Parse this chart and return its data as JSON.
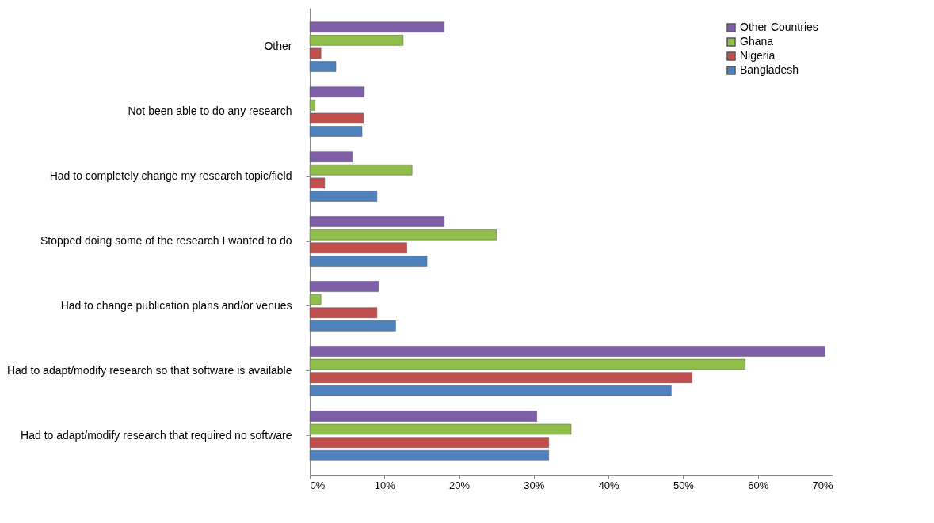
{
  "chart_data": {
    "type": "bar",
    "orientation": "horizontal",
    "categories": [
      "Other",
      "Not been able to do any research",
      "Had to completely change my research topic/field",
      "Stopped doing some of the research I wanted to do",
      "Had to change publication plans and/or venues",
      "Had to adapt/modify research so that software is available",
      "Had to adapt/modify research that required no software"
    ],
    "series": [
      {
        "name": "Bangladesh",
        "color": "#4f81bd",
        "values": [
          3.5,
          7,
          9,
          15.7,
          11.5,
          48.4,
          32
        ]
      },
      {
        "name": "Nigeria",
        "color": "#c0504d",
        "values": [
          1.5,
          7.2,
          2,
          13,
          9,
          51.2,
          32
        ]
      },
      {
        "name": "Ghana",
        "color": "#8fbf4a",
        "values": [
          12.5,
          0.7,
          13.7,
          25,
          1.5,
          58.3,
          35
        ]
      },
      {
        "name": "Other Countries",
        "color": "#7f5fa8",
        "values": [
          18,
          7.3,
          5.7,
          18,
          9.2,
          69,
          30.4
        ]
      }
    ],
    "xlim": [
      0,
      70
    ],
    "xticks": [
      {
        "value": 0,
        "label": "0%"
      },
      {
        "value": 10,
        "label": "10%"
      },
      {
        "value": 20,
        "label": "20%"
      },
      {
        "value": 30,
        "label": "30%"
      },
      {
        "value": 40,
        "label": "40%"
      },
      {
        "value": 50,
        "label": "50%"
      },
      {
        "value": 60,
        "label": "60%"
      },
      {
        "value": 70,
        "label": "70%"
      }
    ],
    "legend": "top right",
    "grid": false
  }
}
